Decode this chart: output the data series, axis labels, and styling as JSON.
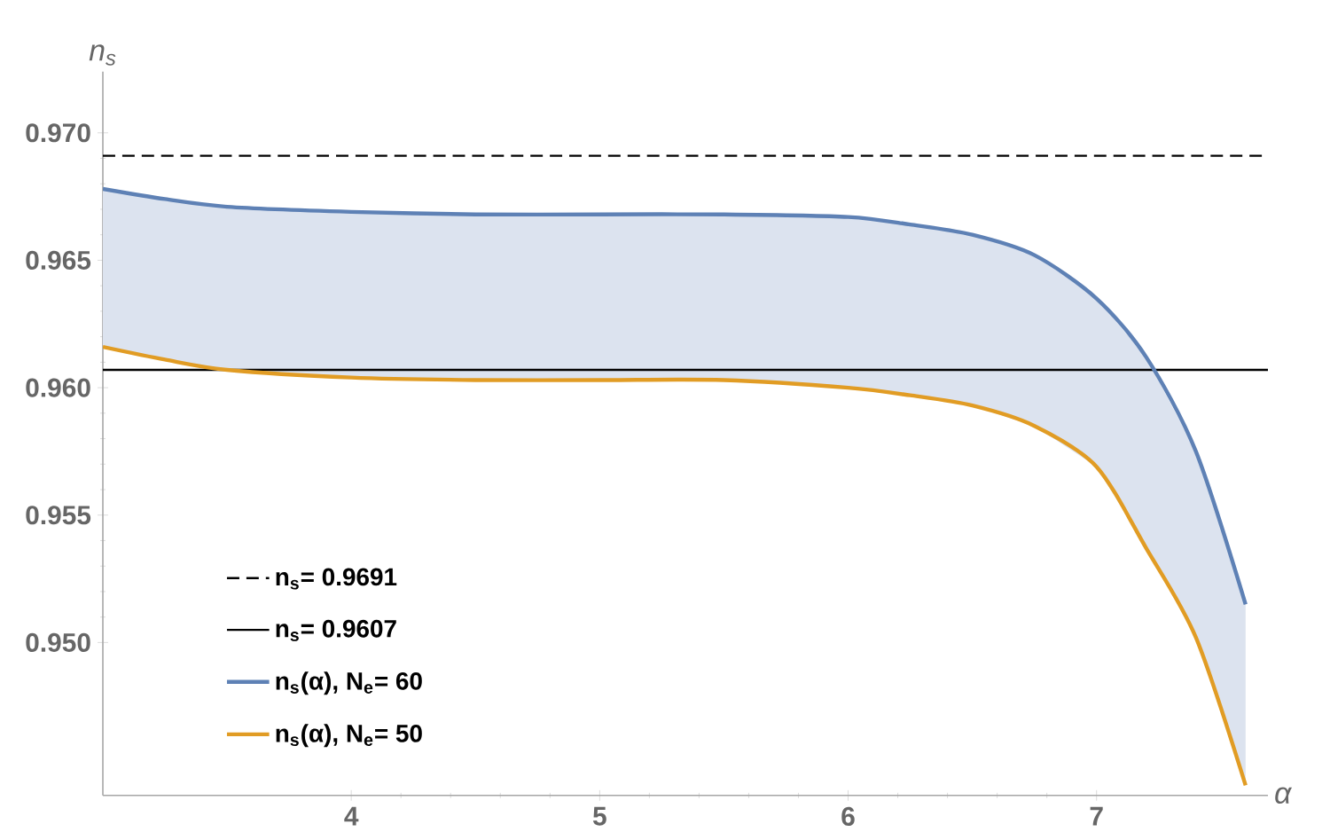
{
  "chart_data": {
    "type": "line",
    "xlabel": "α",
    "ylabel": "n$_{s}$",
    "x": [
      3,
      3.25,
      3.5,
      4,
      4.5,
      5,
      5.5,
      6,
      6.25,
      6.5,
      6.75,
      7,
      7.2,
      7.4,
      7.6
    ],
    "series": [
      {
        "name": "n$_{s}$(α), N$_{e}$= 60",
        "color": "#5e81b5",
        "values": [
          0.9678,
          0.9674,
          0.9671,
          0.9669,
          0.9668,
          0.9668,
          0.9668,
          0.9667,
          0.9664,
          0.966,
          0.9652,
          0.9635,
          0.9612,
          0.9575,
          0.9515
        ],
        "lower": [
          0.9616,
          0.9611,
          0.9607,
          0.9604,
          0.9603,
          0.9603,
          0.9603,
          0.96,
          0.9597,
          0.9593,
          0.9585,
          0.9569,
          0.9537,
          0.9502,
          0.9444
        ],
        "upper": [
          0.9678,
          0.9674,
          0.9671,
          0.9669,
          0.9668,
          0.9668,
          0.9668,
          0.9667,
          0.9664,
          0.966,
          0.9652,
          0.9635,
          0.9612,
          0.9575,
          0.9515
        ]
      },
      {
        "name": "n$_{s}$(α), N$_{e}$= 50",
        "color": "#e19c24",
        "values": [
          0.9616,
          0.9611,
          0.9607,
          0.9604,
          0.9603,
          0.9603,
          0.9603,
          0.96,
          0.9597,
          0.9593,
          0.9585,
          0.9569,
          0.9537,
          0.9502,
          0.9444
        ]
      }
    ],
    "ref_lines": [
      {
        "axis": "y",
        "value": 0.9691,
        "label": "n$_{s}$= 0.9691",
        "color": "#000000",
        "line_style": "dashed"
      },
      {
        "axis": "y",
        "value": 0.9607,
        "label": "n$_{s}$= 0.9607",
        "color": "#000000",
        "line_style": "solid"
      }
    ],
    "xlim": [
      3,
      7.69
    ],
    "ylim": [
      0.944,
      0.9724
    ],
    "xticks": [
      4,
      5,
      6,
      7
    ],
    "yticks": [
      {
        "value": 0.95,
        "label": "0.950"
      },
      {
        "value": 0.955,
        "label": "0.955"
      },
      {
        "value": 0.96,
        "label": "0.960"
      },
      {
        "value": 0.965,
        "label": "0.965"
      },
      {
        "value": 0.97,
        "label": "0.970"
      }
    ],
    "legend": "bottom left"
  }
}
